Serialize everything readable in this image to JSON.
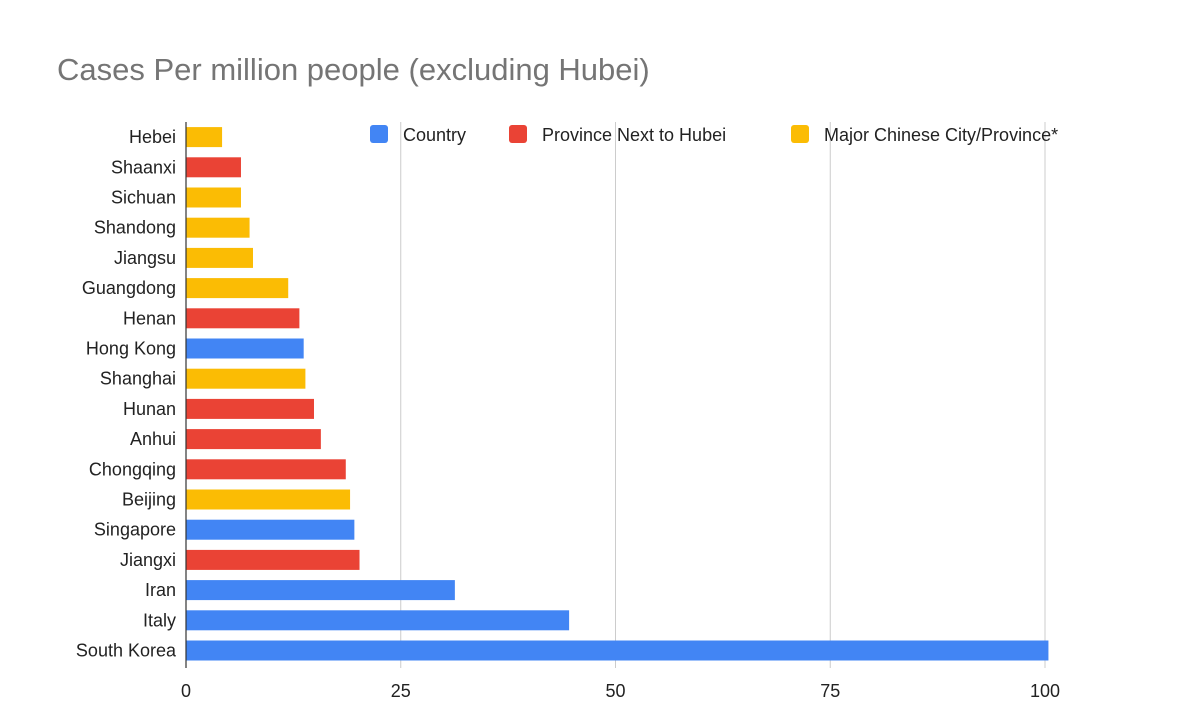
{
  "chart_data": {
    "type": "bar",
    "orientation": "horizontal",
    "title": "Cases Per million people (excluding Hubei)",
    "xlabel": "",
    "ylabel": "",
    "xlim": [
      0,
      100
    ],
    "x_ticks": [
      0,
      25,
      50,
      75,
      100
    ],
    "grid": true,
    "legend_position": "top-right",
    "series": [
      {
        "name": "Country",
        "color": "#4285F4"
      },
      {
        "name": "Province Next to Hubei",
        "color": "#EA4335"
      },
      {
        "name": "Major Chinese City/Province*",
        "color": "#FBBC04"
      }
    ],
    "categories": [
      "Hebei",
      "Shaanxi",
      "Sichuan",
      "Shandong",
      "Jiangsu",
      "Guangdong",
      "Henan",
      "Hong Kong",
      "Shanghai",
      "Hunan",
      "Anhui",
      "Chongqing",
      "Beijing",
      "Singapore",
      "Jiangxi",
      "Iran",
      "Italy",
      "South Korea"
    ],
    "values": [
      4.2,
      6.4,
      6.4,
      7.4,
      7.8,
      11.9,
      13.2,
      13.7,
      13.9,
      14.9,
      15.7,
      18.6,
      19.1,
      19.6,
      20.2,
      31.3,
      44.6,
      100.4
    ],
    "groups": [
      "Major Chinese City/Province*",
      "Province Next to Hubei",
      "Major Chinese City/Province*",
      "Major Chinese City/Province*",
      "Major Chinese City/Province*",
      "Major Chinese City/Province*",
      "Province Next to Hubei",
      "Country",
      "Major Chinese City/Province*",
      "Province Next to Hubei",
      "Province Next to Hubei",
      "Province Next to Hubei",
      "Major Chinese City/Province*",
      "Country",
      "Province Next to Hubei",
      "Country",
      "Country",
      "Country"
    ]
  }
}
